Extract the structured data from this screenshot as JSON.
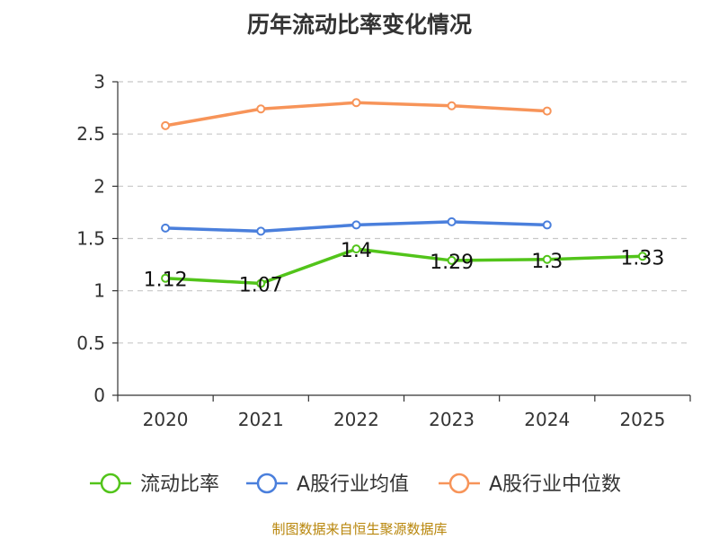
{
  "chart_data": {
    "type": "line",
    "title": "历年流动比率变化情况",
    "categories": [
      "2020",
      "2021",
      "2022",
      "2023",
      "2024",
      "2025"
    ],
    "ylim": [
      0,
      3
    ],
    "yticks": [
      "0",
      "0.5",
      "1",
      "1.5",
      "2",
      "2.5",
      "3"
    ],
    "ytick_values": [
      0,
      0.5,
      1,
      1.5,
      2,
      2.5,
      3
    ],
    "grid": true,
    "legend_position": "bottom",
    "series": [
      {
        "name": "流动比率",
        "color": "#52c41a",
        "values": [
          1.12,
          1.07,
          1.4,
          1.29,
          1.3,
          1.33
        ],
        "labels": [
          "1.12",
          "1.07",
          "1.4",
          "1.29",
          "1.3",
          "1.33"
        ],
        "show_labels": true
      },
      {
        "name": "A股行业均值",
        "color": "#4a7fdc",
        "values": [
          1.6,
          1.57,
          1.63,
          1.66,
          1.63,
          null
        ],
        "show_labels": false
      },
      {
        "name": "A股行业中位数",
        "color": "#f79459",
        "values": [
          2.58,
          2.74,
          2.8,
          2.77,
          2.72,
          null
        ],
        "show_labels": false
      }
    ]
  },
  "source": "制图数据来自恒生聚源数据库"
}
